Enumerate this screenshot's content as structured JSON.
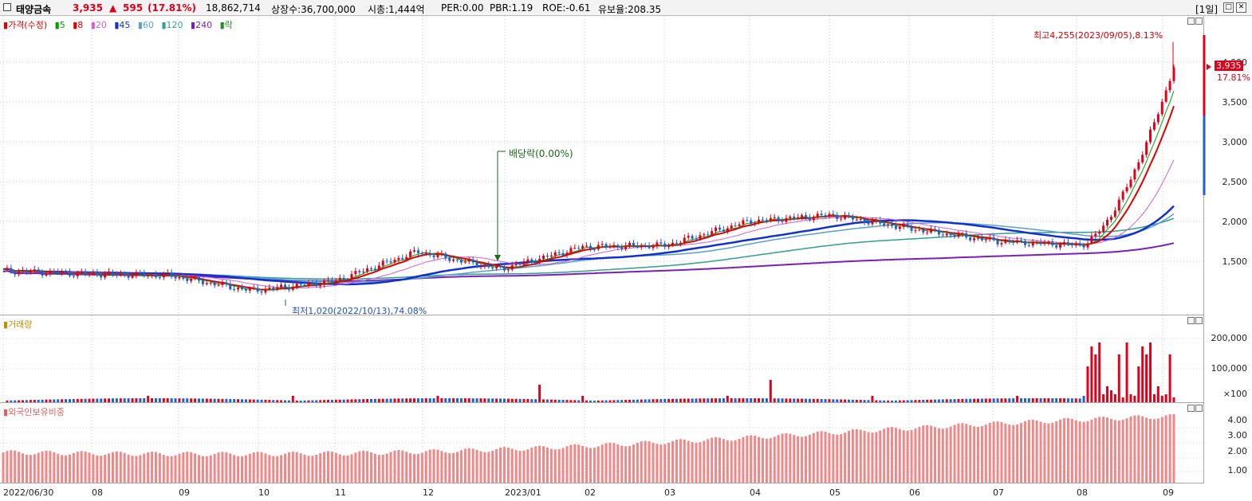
{
  "header": {
    "stock_name": "태양금속",
    "price": "3,935",
    "change_arrow": "▲",
    "change": "595",
    "change_pct": "(17.81%)",
    "volume": "18,862,714",
    "shares": "상장수:36,700,000",
    "market_cap": "시총:1,444억",
    "per": "PER:0.00",
    "pbr": "PBR:1.19",
    "roe": "ROE:-0.61",
    "float_ratio": "유보율:208.35",
    "period": "[1일]",
    "colors": {
      "up": "#e0001a",
      "down": "#1d5fd6"
    }
  },
  "price_panel": {
    "legend": {
      "price": "가격(수정)",
      "ma5": "5",
      "ma8": "8",
      "ma20": "20",
      "ma45": "45",
      "ma60": "60",
      "ma120": "120",
      "ma240": "240",
      "ex_rights": "락"
    },
    "ma_colors": {
      "ma5": "#00a000",
      "ma8": "#e00000",
      "ma20": "#d060d0",
      "ma45": "#1030d0",
      "ma60": "#5aa0c8",
      "ma120": "#30a090",
      "ma240": "#7a20b8"
    },
    "annotations": {
      "high": "최고4,255(2023/09/05),8.13%",
      "low": "최저1,020(2022/10/13),74.08%",
      "dividend": "배당락(0.00%)"
    },
    "current_price_tag": "3,935",
    "current_change_tag": "17.81%",
    "y_ticks": [
      "4,000",
      "3,500",
      "3,000",
      "2,500",
      "2,000",
      "1,500"
    ]
  },
  "volume_panel": {
    "legend": "거래량",
    "y_ticks": [
      "200,000",
      "100,000",
      "×100"
    ]
  },
  "foreign_panel": {
    "legend": "외국인보유비중",
    "y_ticks": [
      "4.00",
      "3.00",
      "2.00",
      "1.00"
    ]
  },
  "x_axis": {
    "labels": [
      "2022/06/30",
      "08",
      "09",
      "10",
      "11",
      "12",
      "2023/01",
      "02",
      "03",
      "04",
      "05",
      "06",
      "07",
      "08",
      "09"
    ]
  },
  "chart_data": {
    "type": "line",
    "title": "",
    "xlabel": "",
    "ylabel": "",
    "ylim": [
      1000,
      4300
    ],
    "x": [
      "2022/06/30",
      "2022/08",
      "2022/09",
      "2022/10",
      "2022/11",
      "2022/12",
      "2023/01",
      "2023/02",
      "2023/03",
      "2023/04",
      "2023/05",
      "2023/06",
      "2023/07",
      "2023/08",
      "2023/09"
    ],
    "series": [
      {
        "name": "가격(수정)",
        "values": [
          1380,
          1340,
          1320,
          1130,
          1250,
          1620,
          1400,
          1680,
          1700,
          2000,
          2080,
          1900,
          1750,
          1700,
          3935
        ]
      }
    ],
    "high": 4255,
    "low": 1020,
    "last": 3935
  }
}
